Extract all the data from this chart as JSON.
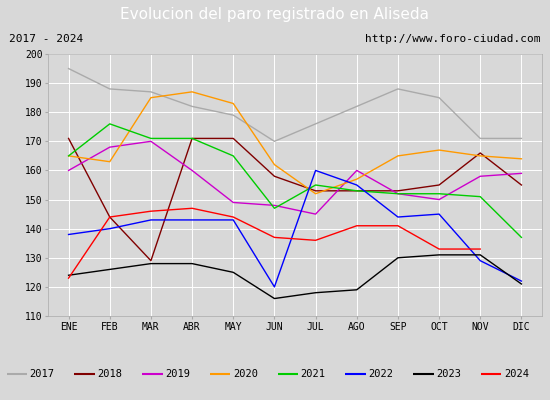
{
  "title": "Evolucion del paro registrado en Aliseda",
  "subtitle_left": "2017 - 2024",
  "subtitle_right": "http://www.foro-ciudad.com",
  "x_labels": [
    "ENE",
    "FEB",
    "MAR",
    "ABR",
    "MAY",
    "JUN",
    "JUL",
    "AGO",
    "SEP",
    "OCT",
    "NOV",
    "DIC"
  ],
  "ylim": [
    110,
    200
  ],
  "yticks": [
    110,
    120,
    130,
    140,
    150,
    160,
    170,
    180,
    190,
    200
  ],
  "series": {
    "2017": {
      "color": "#aaaaaa",
      "data": [
        195,
        188,
        187,
        182,
        179,
        170,
        null,
        null,
        188,
        185,
        171,
        171
      ]
    },
    "2018": {
      "color": "#800000",
      "data": [
        171,
        144,
        129,
        171,
        171,
        158,
        153,
        153,
        153,
        155,
        166,
        155
      ]
    },
    "2019": {
      "color": "#cc00cc",
      "data": [
        160,
        168,
        170,
        160,
        149,
        148,
        145,
        160,
        152,
        150,
        158,
        159
      ]
    },
    "2020": {
      "color": "#ff9900",
      "data": [
        165,
        163,
        185,
        187,
        183,
        162,
        152,
        157,
        165,
        167,
        165,
        164
      ]
    },
    "2021": {
      "color": "#00cc00",
      "data": [
        165,
        176,
        171,
        171,
        165,
        147,
        155,
        153,
        152,
        152,
        151,
        137
      ]
    },
    "2022": {
      "color": "#0000ff",
      "data": [
        138,
        140,
        143,
        143,
        143,
        120,
        160,
        155,
        144,
        145,
        129,
        122
      ]
    },
    "2023": {
      "color": "#000000",
      "data": [
        124,
        126,
        128,
        128,
        125,
        116,
        118,
        119,
        130,
        131,
        131,
        121
      ]
    },
    "2024": {
      "color": "#ff0000",
      "data": [
        123,
        144,
        146,
        147,
        144,
        137,
        136,
        141,
        141,
        133,
        133,
        null
      ]
    }
  },
  "title_bg_color": "#4a86c8",
  "title_color": "white",
  "title_fontsize": 11,
  "subtitle_fontsize": 8,
  "legend_fontsize": 7.5,
  "tick_fontsize": 7,
  "fig_bg_color": "#d8d8d8",
  "plot_bg_color": "#d8d8d8",
  "grid_color": "white",
  "legend_bg_color": "#f0f0f0",
  "subtitle_bg_color": "#f8f8f8"
}
